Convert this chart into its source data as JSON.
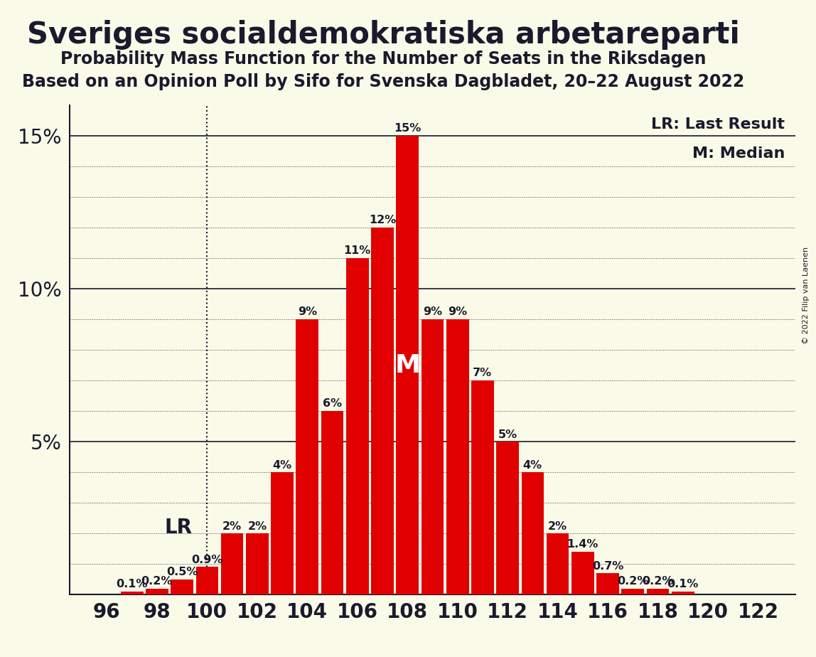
{
  "title": "Sveriges socialdemokratiska arbetareparti",
  "subtitle1": "Probability Mass Function for the Number of Seats in the Riksdagen",
  "subtitle2": "Based on an Opinion Poll by Sifo for Svenska Dagbladet, 20–22 August 2022",
  "copyright": "© 2022 Filip van Laenen",
  "seats": [
    96,
    97,
    98,
    99,
    100,
    101,
    102,
    103,
    104,
    105,
    106,
    107,
    108,
    109,
    110,
    111,
    112,
    113,
    114,
    115,
    116,
    117,
    118,
    119,
    120,
    121,
    122
  ],
  "probabilities": [
    0.0,
    0.001,
    0.002,
    0.005,
    0.009,
    0.02,
    0.02,
    0.04,
    0.09,
    0.06,
    0.11,
    0.12,
    0.15,
    0.09,
    0.09,
    0.07,
    0.05,
    0.04,
    0.02,
    0.014,
    0.007,
    0.002,
    0.002,
    0.001,
    0.0,
    0.0,
    0.0
  ],
  "bar_color": "#e00000",
  "background_color": "#fafae8",
  "text_color": "#1a1a2e",
  "lr_seat": 100,
  "median_seat": 108,
  "lr_label": "LR",
  "median_label": "M",
  "legend_lr": "LR: Last Result",
  "legend_m": "M: Median",
  "ylim": [
    0,
    0.16
  ],
  "yticks": [
    0.0,
    0.05,
    0.1,
    0.15
  ],
  "xtick_step": 2,
  "title_fontsize": 30,
  "subtitle_fontsize": 17,
  "axis_fontsize": 20,
  "bar_label_fontsize": 11.5,
  "legend_fontsize": 16,
  "lr_m_fontsize": 20,
  "median_m_fontsize": 26
}
